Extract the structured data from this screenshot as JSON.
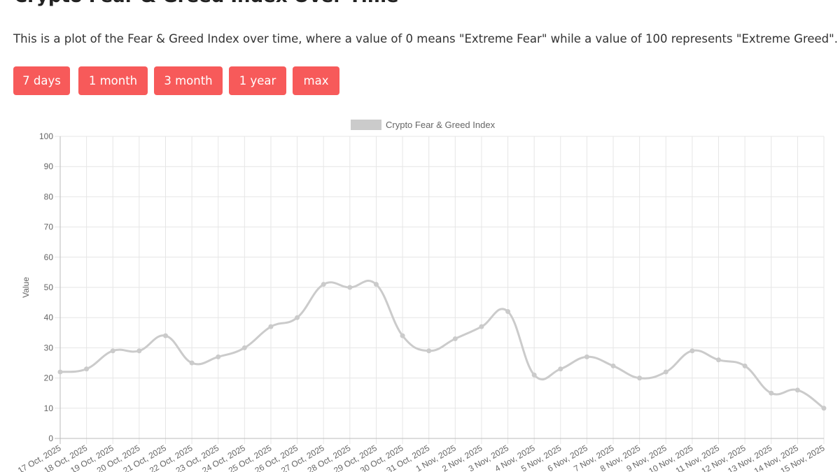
{
  "page": {
    "title": "Crypto Fear & Greed Index Over Time",
    "subtitle": "This is a plot of the Fear & Greed Index over time, where a value of 0 means \"Extreme Fear\" while a value of 100 represents \"Extreme Greed\".",
    "buttons": [
      "7 days",
      "1 month",
      "3 month",
      "1 year",
      "max"
    ]
  },
  "chart_data": {
    "type": "line",
    "y_label": "Value",
    "legend_position": "top",
    "grid": true,
    "categories": [
      "17 Oct, 2025",
      "18 Oct, 2025",
      "19 Oct, 2025",
      "20 Oct, 2025",
      "21 Oct, 2025",
      "22 Oct, 2025",
      "23 Oct, 2025",
      "24 Oct, 2025",
      "25 Oct, 2025",
      "26 Oct, 2025",
      "27 Oct, 2025",
      "28 Oct, 2025",
      "29 Oct, 2025",
      "30 Oct, 2025",
      "31 Oct, 2025",
      "1 Nov, 2025",
      "2 Nov, 2025",
      "3 Nov, 2025",
      "4 Nov, 2025",
      "5 Nov, 2025",
      "6 Nov, 2025",
      "7 Nov, 2025",
      "8 Nov, 2025",
      "9 Nov, 2025",
      "10 Nov, 2025",
      "11 Nov, 2025",
      "12 Nov, 2025",
      "13 Nov, 2025",
      "14 Nov, 2025",
      "15 Nov, 2025"
    ],
    "series": [
      {
        "name": "Crypto Fear & Greed Index",
        "color": "#cbcbcb",
        "values": [
          22,
          23,
          29,
          29,
          34,
          25,
          27,
          30,
          37,
          40,
          51,
          50,
          51,
          34,
          29,
          33,
          37,
          42,
          21,
          23,
          27,
          24,
          20,
          22,
          29,
          26,
          24,
          15,
          16,
          10
        ]
      }
    ],
    "ylim": [
      0,
      100
    ],
    "yticks": [
      0,
      10,
      20,
      30,
      40,
      50,
      60,
      70,
      80,
      90,
      100
    ]
  }
}
